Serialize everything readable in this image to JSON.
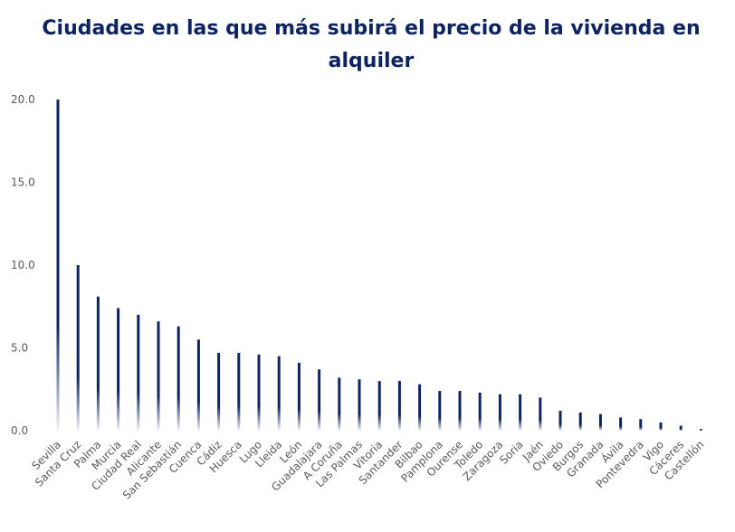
{
  "chart_data": {
    "type": "bar",
    "title": "Ciudades en las que más subirá el precio de la vivienda en alquiler",
    "xlabel": "",
    "ylabel": "",
    "ylim": [
      0,
      20
    ],
    "yticks": [
      "0.0",
      "5.0",
      "10.0",
      "15.0",
      "20.0"
    ],
    "grid": false,
    "legend": "none",
    "bar_color": "#0d2461",
    "categories": [
      "Sevilla",
      "Santa Cruz",
      "Palma",
      "Murcia",
      "Ciudad Real",
      "Alicante",
      "San Sebastián",
      "Cuenca",
      "Cádiz",
      "Huesca",
      "Lugo",
      "Lleida",
      "León",
      "Guadalajara",
      "A Coruña",
      "Las Palmas",
      "Vitoria",
      "Santander",
      "Bilbao",
      "Pamplona",
      "Ourense",
      "Toledo",
      "Zaragoza",
      "Soria",
      "Jaén",
      "Oviedo",
      "Burgos",
      "Granada",
      "Ávila",
      "Pontevedra",
      "Vigo",
      "Cáceres",
      "Castellón"
    ],
    "values": [
      20.0,
      10.0,
      8.1,
      7.4,
      7.0,
      6.6,
      6.3,
      5.5,
      4.7,
      4.7,
      4.6,
      4.5,
      4.1,
      3.7,
      3.2,
      3.1,
      3.0,
      3.0,
      2.8,
      2.4,
      2.4,
      2.3,
      2.2,
      2.2,
      2.0,
      1.2,
      1.1,
      1.0,
      0.8,
      0.7,
      0.5,
      0.3,
      0.1
    ]
  }
}
